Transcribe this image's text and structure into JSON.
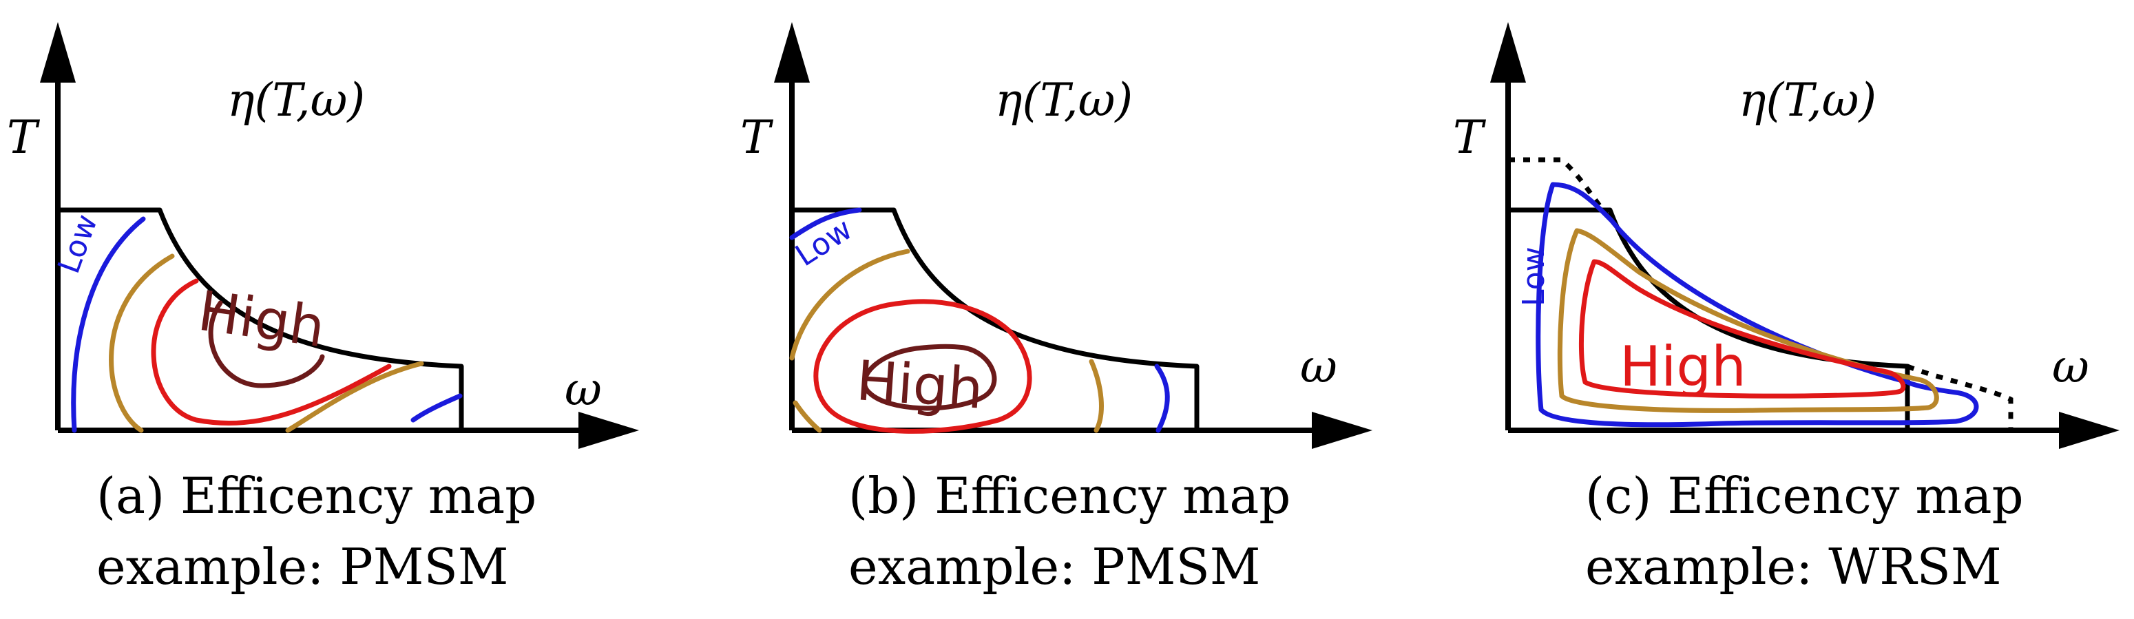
{
  "panels": [
    {
      "id": "a",
      "title": "η(T,ω)",
      "y_axis_label": "T",
      "x_axis_label": "ω",
      "low_label": "Low",
      "high_label": "High",
      "caption_line1": "(a) Efficency map",
      "caption_line2": "example: PMSM"
    },
    {
      "id": "b",
      "title": "η(T,ω)",
      "y_axis_label": "T",
      "x_axis_label": "ω",
      "low_label": "Low",
      "high_label": "High",
      "caption_line1": "(b) Efficency map",
      "caption_line2": "example: PMSM"
    },
    {
      "id": "c",
      "title": "η(T,ω)",
      "y_axis_label": "T",
      "x_axis_label": "ω",
      "low_label": "Low",
      "high_label": "High",
      "caption_line1": "(c) Efficency map",
      "caption_line2": "example: WRSM"
    }
  ],
  "colors": {
    "axis": "#000000",
    "low_contour": "#1a1adc",
    "mid_contour": "#b8862a",
    "high_contour": "#e01818",
    "peak_contour": "#6b1a1a",
    "low_text": "#1a1adc",
    "high_text_ab": "#6b1a1a",
    "high_text_c": "#e01818"
  }
}
